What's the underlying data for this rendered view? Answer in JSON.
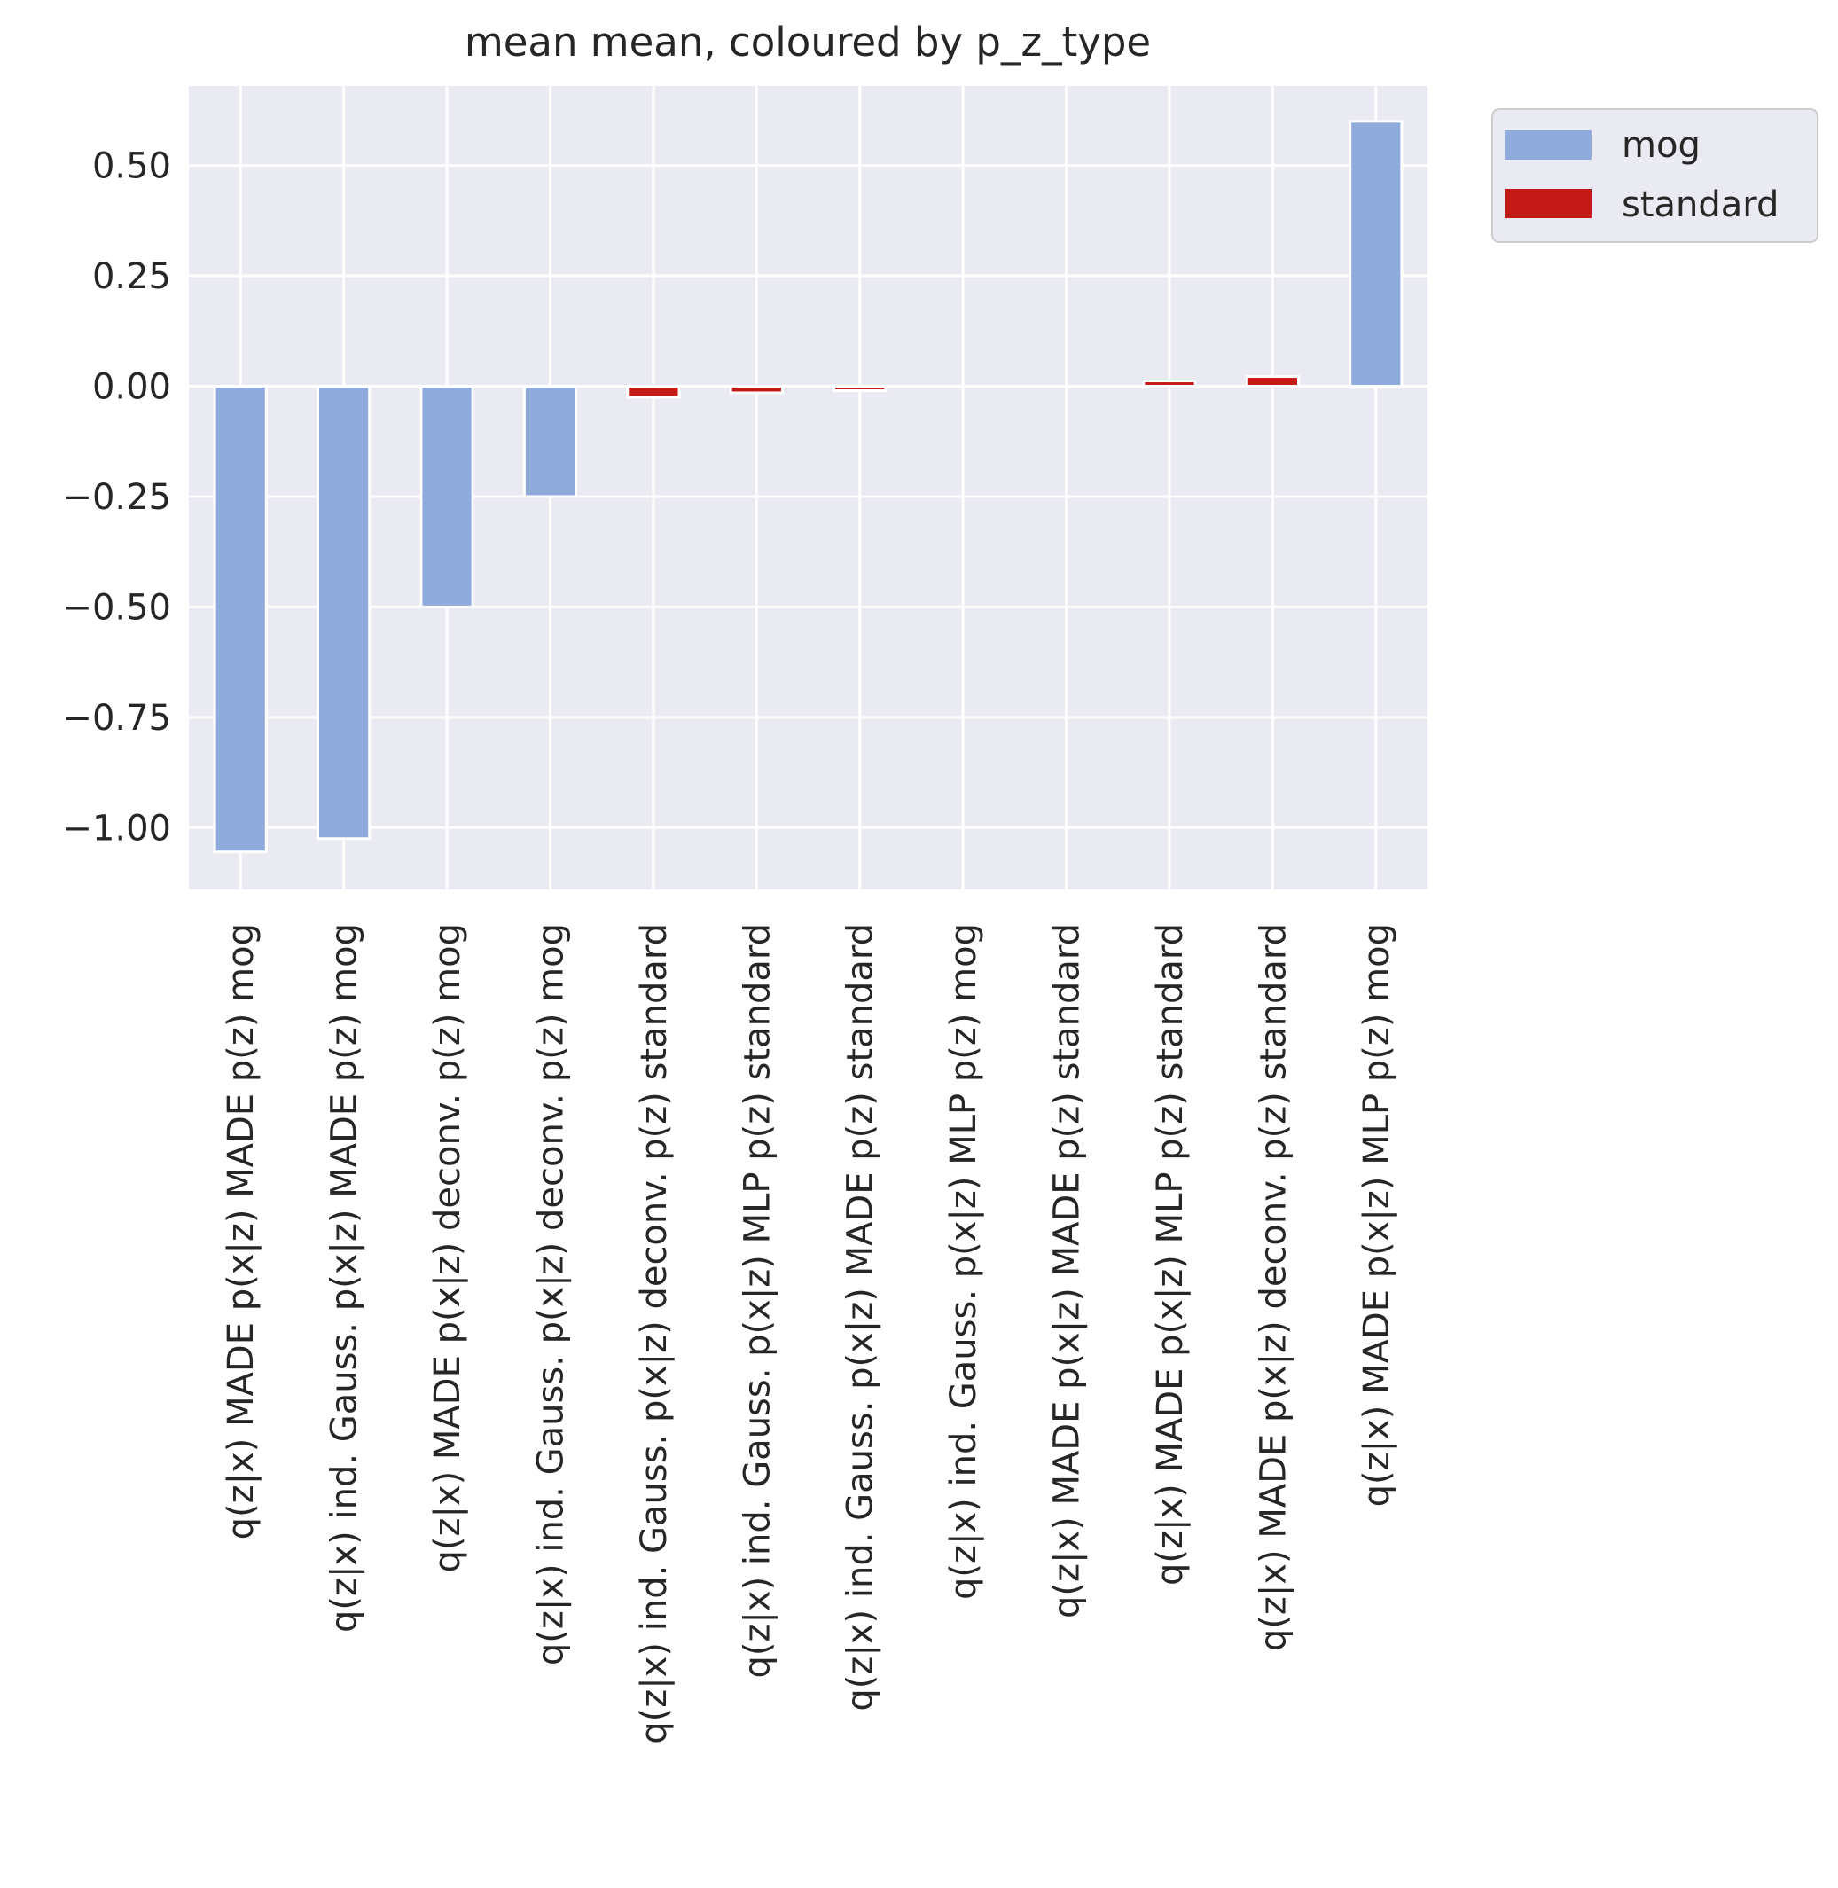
{
  "chart_data": {
    "type": "bar",
    "title": "mean mean, coloured by p_z_type",
    "xlabel": "",
    "ylabel": "",
    "ylim": [
      -1.14,
      0.68
    ],
    "yticks": [
      0.5,
      0.25,
      0.0,
      -0.25,
      -0.5,
      -0.75,
      -1.0
    ],
    "ytick_labels": [
      "0.50",
      "0.25",
      "0.00",
      "−0.25",
      "−0.50",
      "−0.75",
      "−1.00"
    ],
    "grid": true,
    "legend_position": "outside-top-right",
    "legend": [
      {
        "label": "mog",
        "color": "#8eabdc"
      },
      {
        "label": "standard",
        "color": "#c41a17"
      }
    ],
    "categories": [
      "q(z|x) MADE p(x|z) MADE p(z) mog",
      "q(z|x) ind. Gauss. p(x|z) MADE p(z) mog",
      "q(z|x) MADE p(x|z) deconv. p(z) mog",
      "q(z|x) ind. Gauss. p(x|z) deconv. p(z) mog",
      "q(z|x) ind. Gauss. p(x|z) deconv. p(z) standard",
      "q(z|x) ind. Gauss. p(x|z) MLP p(z) standard",
      "q(z|x) ind. Gauss. p(x|z) MADE p(z) standard",
      "q(z|x) ind. Gauss. p(x|z) MLP p(z) mog",
      "q(z|x) MADE p(x|z) MADE p(z) standard",
      "q(z|x) MADE p(x|z) MLP p(z) standard",
      "q(z|x) MADE p(x|z) deconv. p(z) standard",
      "q(z|x) MADE p(x|z) MLP p(z) mog"
    ],
    "groups": [
      "mog",
      "mog",
      "mog",
      "mog",
      "standard",
      "standard",
      "standard",
      "mog",
      "standard",
      "standard",
      "standard",
      "mog"
    ],
    "values": [
      -1.055,
      -1.025,
      -0.5,
      -0.25,
      -0.025,
      -0.015,
      -0.01,
      0.0,
      0.0,
      0.012,
      0.022,
      0.6
    ]
  }
}
